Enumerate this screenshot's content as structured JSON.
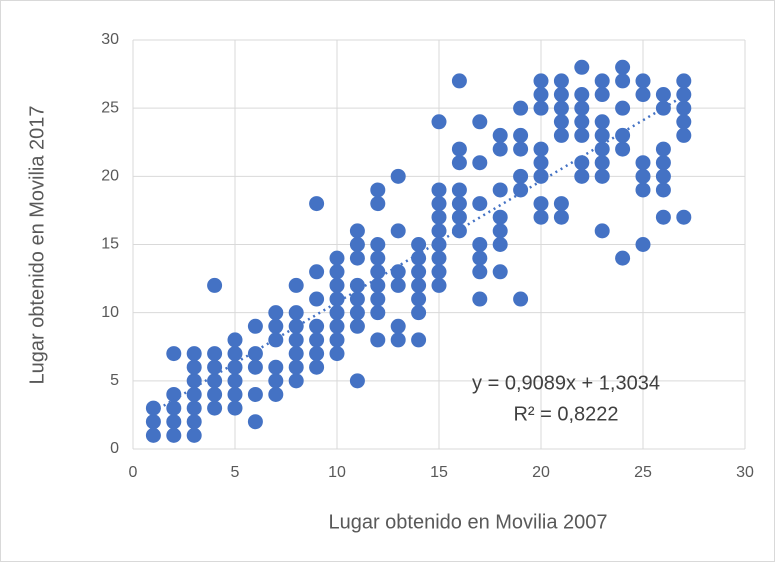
{
  "chart_data": {
    "type": "scatter",
    "color": "#4472c4",
    "grid": true,
    "trendline": true,
    "x_label": "Lugar obtenido en Movilia 2007",
    "y_label": "Lugar obtenido en Movilia 2017",
    "annotations": [
      "y = 0,9089x + 1,3034",
      "R² = 0,8222"
    ],
    "xlim": [
      0,
      30
    ],
    "ylim": [
      0,
      30
    ],
    "xticks": [
      0,
      5,
      10,
      15,
      20,
      25,
      30
    ],
    "yticks": [
      0,
      5,
      10,
      15,
      20,
      25,
      30
    ],
    "x": [
      1,
      1,
      1,
      2,
      2,
      2,
      2,
      2,
      3,
      3,
      3,
      3,
      3,
      3,
      3,
      4,
      4,
      4,
      4,
      4,
      4,
      5,
      5,
      5,
      5,
      5,
      5,
      6,
      6,
      6,
      6,
      6,
      7,
      7,
      7,
      7,
      7,
      7,
      8,
      8,
      8,
      8,
      8,
      8,
      8,
      9,
      9,
      9,
      9,
      9,
      9,
      9,
      10,
      10,
      10,
      10,
      10,
      10,
      10,
      10,
      11,
      11,
      11,
      11,
      11,
      11,
      11,
      11,
      12,
      12,
      12,
      12,
      12,
      12,
      12,
      12,
      12,
      13,
      13,
      13,
      13,
      13,
      13,
      14,
      14,
      14,
      14,
      14,
      14,
      14,
      15,
      15,
      15,
      15,
      15,
      15,
      15,
      15,
      15,
      16,
      16,
      16,
      16,
      16,
      16,
      16,
      17,
      17,
      17,
      17,
      17,
      17,
      17,
      18,
      18,
      18,
      18,
      18,
      18,
      18,
      19,
      19,
      19,
      19,
      19,
      19,
      20,
      20,
      20,
      20,
      20,
      20,
      20,
      20,
      21,
      21,
      21,
      21,
      21,
      21,
      21,
      22,
      22,
      22,
      22,
      22,
      22,
      22,
      23,
      23,
      23,
      23,
      23,
      23,
      23,
      23,
      24,
      24,
      24,
      24,
      24,
      24,
      25,
      25,
      25,
      25,
      25,
      25,
      26,
      26,
      26,
      26,
      26,
      26,
      26,
      27,
      27,
      27,
      27,
      27,
      27
    ],
    "values": [
      1,
      2,
      3,
      1,
      2,
      3,
      4,
      7,
      1,
      2,
      3,
      4,
      5,
      6,
      7,
      3,
      4,
      5,
      6,
      7,
      12,
      3,
      4,
      5,
      6,
      7,
      8,
      2,
      4,
      6,
      7,
      9,
      4,
      5,
      6,
      8,
      9,
      10,
      5,
      6,
      7,
      8,
      9,
      10,
      12,
      6,
      7,
      8,
      9,
      11,
      13,
      18,
      7,
      8,
      9,
      10,
      11,
      12,
      13,
      14,
      5,
      9,
      10,
      11,
      12,
      14,
      15,
      16,
      8,
      10,
      11,
      12,
      13,
      14,
      15,
      18,
      19,
      8,
      9,
      12,
      13,
      16,
      20,
      8,
      10,
      11,
      12,
      13,
      14,
      15,
      12,
      13,
      14,
      15,
      16,
      17,
      18,
      19,
      24,
      16,
      17,
      18,
      19,
      21,
      22,
      27,
      11,
      13,
      14,
      15,
      18,
      21,
      24,
      13,
      15,
      16,
      17,
      19,
      22,
      23,
      11,
      19,
      20,
      22,
      23,
      25,
      17,
      18,
      20,
      21,
      22,
      25,
      26,
      27,
      17,
      18,
      23,
      24,
      25,
      26,
      27,
      20,
      21,
      23,
      24,
      25,
      26,
      28,
      16,
      20,
      21,
      22,
      23,
      24,
      26,
      27,
      14,
      22,
      23,
      25,
      27,
      28,
      15,
      19,
      20,
      21,
      26,
      27,
      17,
      19,
      20,
      21,
      22,
      25,
      26,
      17,
      23,
      24,
      25,
      26,
      27
    ]
  }
}
